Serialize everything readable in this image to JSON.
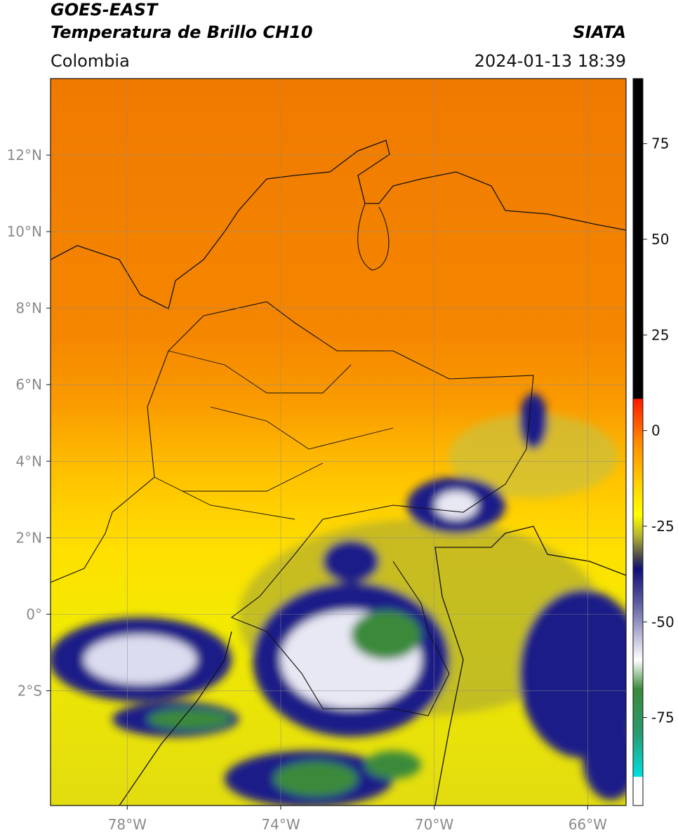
{
  "header": {
    "title": "GOES-EAST",
    "subtitle": "Temperatura de Brillo CH10",
    "source": "SIATA",
    "region": "Colombia",
    "datetime": "2024-01-13 18:39"
  },
  "map": {
    "lonlim": [
      -80,
      -65
    ],
    "latlim": [
      -5,
      14
    ],
    "grid": true,
    "lon_ticks": [
      {
        "value": -78,
        "label": "78°W"
      },
      {
        "value": -74,
        "label": "74°W"
      },
      {
        "value": -70,
        "label": "70°W"
      },
      {
        "value": -66,
        "label": "66°W"
      }
    ],
    "lat_ticks": [
      {
        "value": 12,
        "label": "12°N"
      },
      {
        "value": 10,
        "label": "10°N"
      },
      {
        "value": 8,
        "label": "8°N"
      },
      {
        "value": 6,
        "label": "6°N"
      },
      {
        "value": 4,
        "label": "4°N"
      },
      {
        "value": 2,
        "label": "2°N"
      },
      {
        "value": 0,
        "label": "0°"
      },
      {
        "value": -2,
        "label": "2°S"
      }
    ]
  },
  "colorbar": {
    "lim": [
      -98,
      92
    ],
    "ticks": [
      75,
      50,
      25,
      0,
      -25,
      -50,
      -75
    ]
  }
}
